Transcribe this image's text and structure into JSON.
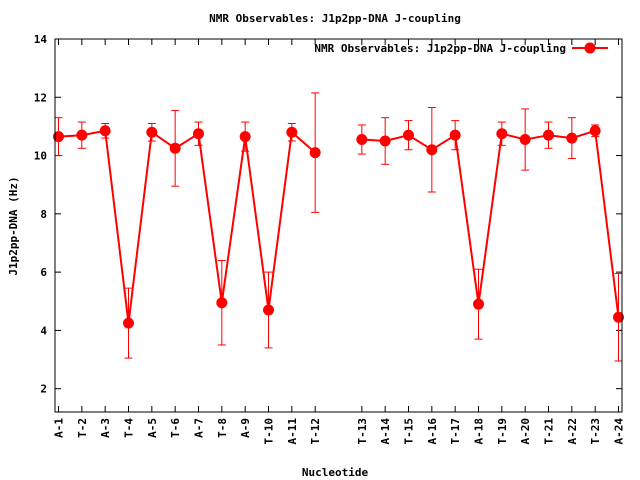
{
  "chart_data": {
    "type": "line",
    "title": "NMR Observables: J1p2pp-DNA J-coupling",
    "xlabel": "Nucleotide",
    "ylabel": "J1p2pp-DNA (Hz)",
    "ylim": [
      1.2,
      14
    ],
    "yticks": [
      2,
      4,
      6,
      8,
      10,
      12,
      14
    ],
    "legend_position": "top-right",
    "grid": false,
    "series": [
      {
        "name": "NMR Observables: J1p2pp-DNA J-coupling",
        "color": "#ff0000",
        "segments": [
          [
            {
              "x": 1,
              "label": "A-1",
              "y": 10.65,
              "err": 0.65
            },
            {
              "x": 2,
              "label": "T-2",
              "y": 10.7,
              "err": 0.45
            },
            {
              "x": 3,
              "label": "A-3",
              "y": 10.85,
              "err": 0.25
            },
            {
              "x": 4,
              "label": "T-4",
              "y": 4.25,
              "err": 1.2
            },
            {
              "x": 5,
              "label": "A-5",
              "y": 10.8,
              "err": 0.3
            },
            {
              "x": 6,
              "label": "T-6",
              "y": 10.25,
              "err": 1.3
            },
            {
              "x": 7,
              "label": "A-7",
              "y": 10.75,
              "err": 0.4
            },
            {
              "x": 8,
              "label": "T-8",
              "y": 4.95,
              "err": 1.45
            },
            {
              "x": 9,
              "label": "A-9",
              "y": 10.65,
              "err": 0.5
            },
            {
              "x": 10,
              "label": "T-10",
              "y": 4.7,
              "err": 1.3
            },
            {
              "x": 11,
              "label": "A-11",
              "y": 10.8,
              "err": 0.3
            },
            {
              "x": 12,
              "label": "T-12",
              "y": 10.1,
              "err": 2.05
            }
          ],
          [
            {
              "x": 14,
              "label": "T-13",
              "y": 10.55,
              "err": 0.5
            },
            {
              "x": 15,
              "label": "A-14",
              "y": 10.5,
              "err": 0.8
            },
            {
              "x": 16,
              "label": "T-15",
              "y": 10.7,
              "err": 0.5
            },
            {
              "x": 17,
              "label": "A-16",
              "y": 10.2,
              "err": 1.45
            },
            {
              "x": 18,
              "label": "T-17",
              "y": 10.7,
              "err": 0.5
            },
            {
              "x": 19,
              "label": "A-18",
              "y": 4.9,
              "err": 1.2
            },
            {
              "x": 20,
              "label": "T-19",
              "y": 10.75,
              "err": 0.4
            },
            {
              "x": 21,
              "label": "A-20",
              "y": 10.55,
              "err": 1.05
            },
            {
              "x": 22,
              "label": "T-21",
              "y": 10.7,
              "err": 0.45
            },
            {
              "x": 23,
              "label": "A-22",
              "y": 10.6,
              "err": 0.7
            },
            {
              "x": 24,
              "label": "T-23",
              "y": 10.85,
              "err": 0.2
            },
            {
              "x": 25,
              "label": "A-24",
              "y": 4.45,
              "err": 1.5
            }
          ]
        ]
      }
    ]
  }
}
